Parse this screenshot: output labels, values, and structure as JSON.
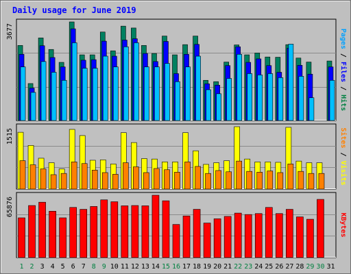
{
  "chart_data": {
    "type": "bar",
    "title": "Daily usage for June 2019",
    "categories": [
      "1",
      "2",
      "3",
      "4",
      "5",
      "6",
      "7",
      "8",
      "9",
      "10",
      "11",
      "12",
      "13",
      "14",
      "15",
      "16",
      "17",
      "18",
      "19",
      "20",
      "21",
      "22",
      "23",
      "24",
      "25",
      "26",
      "27",
      "28",
      "29",
      "30",
      "31"
    ],
    "weekend_days": [
      "1",
      "2",
      "8",
      "9",
      "15",
      "16",
      "22",
      "23",
      "29",
      "30"
    ],
    "panels": [
      {
        "id": "hits",
        "ymax_label": "3677",
        "ymax": 3677,
        "right_label": [
          "Pages",
          "Files",
          "Hits"
        ],
        "right_label_colors": [
          "#00a0ff",
          "#0000ff",
          "#008040"
        ],
        "series": [
          {
            "name": "Hits",
            "color": "#008060",
            "values": [
              2800,
              1380,
              3080,
              2650,
              2170,
              3677,
              2450,
              2450,
              3300,
              2600,
              3520,
              3450,
              2800,
              2500,
              3150,
              2450,
              2830,
              3150,
              1500,
              1450,
              2180,
              2820,
              2450,
              2520,
              2370,
              2360,
              2830,
              2330,
              2180,
              0,
              2220
            ]
          },
          {
            "name": "Files",
            "color": "#0000ff",
            "values": [
              2470,
              1210,
              2790,
              2350,
              2000,
              3420,
              2250,
              2270,
              2960,
              2400,
              3000,
              3050,
              2500,
              2200,
              2950,
              1750,
              2470,
              2840,
              1370,
              1320,
              2050,
              2750,
              2170,
              2300,
              2050,
              1800,
              2700,
              2060,
              1730,
              0,
              2000
            ]
          },
          {
            "name": "Pages",
            "color": "#00bfff",
            "values": [
              2000,
              1050,
              2200,
              1800,
              1500,
              2900,
              1950,
              1950,
              2400,
              2000,
              2750,
              2900,
              2000,
              2000,
              2130,
              1450,
              2000,
              2400,
              1150,
              1000,
              1570,
              2470,
              1750,
              1700,
              1750,
              1600,
              2850,
              1650,
              850,
              0,
              1500
            ]
          }
        ]
      },
      {
        "id": "visits",
        "ymax_label": "1515",
        "ymax": 1515,
        "right_label": [
          "Sites",
          "Visits"
        ],
        "right_label_colors": [
          "#ff8000",
          "#ffff00"
        ],
        "series": [
          {
            "name": "Visits",
            "color": "#ffff00",
            "values": [
              1380,
              1060,
              750,
              640,
              490,
              1450,
              1300,
              700,
              710,
              610,
              1370,
              1130,
              740,
              730,
              660,
              660,
              1370,
              930,
              600,
              640,
              690,
              1515,
              730,
              660,
              660,
              650,
              1500,
              680,
              640,
              640,
              0
            ]
          },
          {
            "name": "Sites",
            "color": "#ff8000",
            "values": [
              690,
              590,
              490,
              350,
              380,
              660,
              620,
              460,
              400,
              360,
              640,
              540,
              400,
              500,
              470,
              410,
              660,
              550,
              380,
              450,
              420,
              680,
              430,
              410,
              440,
              400,
              610,
              430,
              380,
              380,
              0
            ]
          }
        ]
      },
      {
        "id": "kbytes",
        "ymax_label": "65876",
        "ymax": 65876,
        "right_label": [
          "KBytes"
        ],
        "right_label_colors": [
          "#ff0000"
        ],
        "series": [
          {
            "name": "KBytes",
            "color": "#ff0000",
            "values": [
              42000,
              55000,
              58500,
              49000,
              42000,
              53000,
              51000,
              54000,
              61000,
              59000,
              54700,
              55000,
              54700,
              65876,
              60000,
              35000,
              44000,
              51000,
              36500,
              41000,
              43500,
              47000,
              45500,
              46500,
              53000,
              46500,
              51000,
              43000,
              40500,
              61500,
              0
            ]
          }
        ]
      }
    ]
  }
}
